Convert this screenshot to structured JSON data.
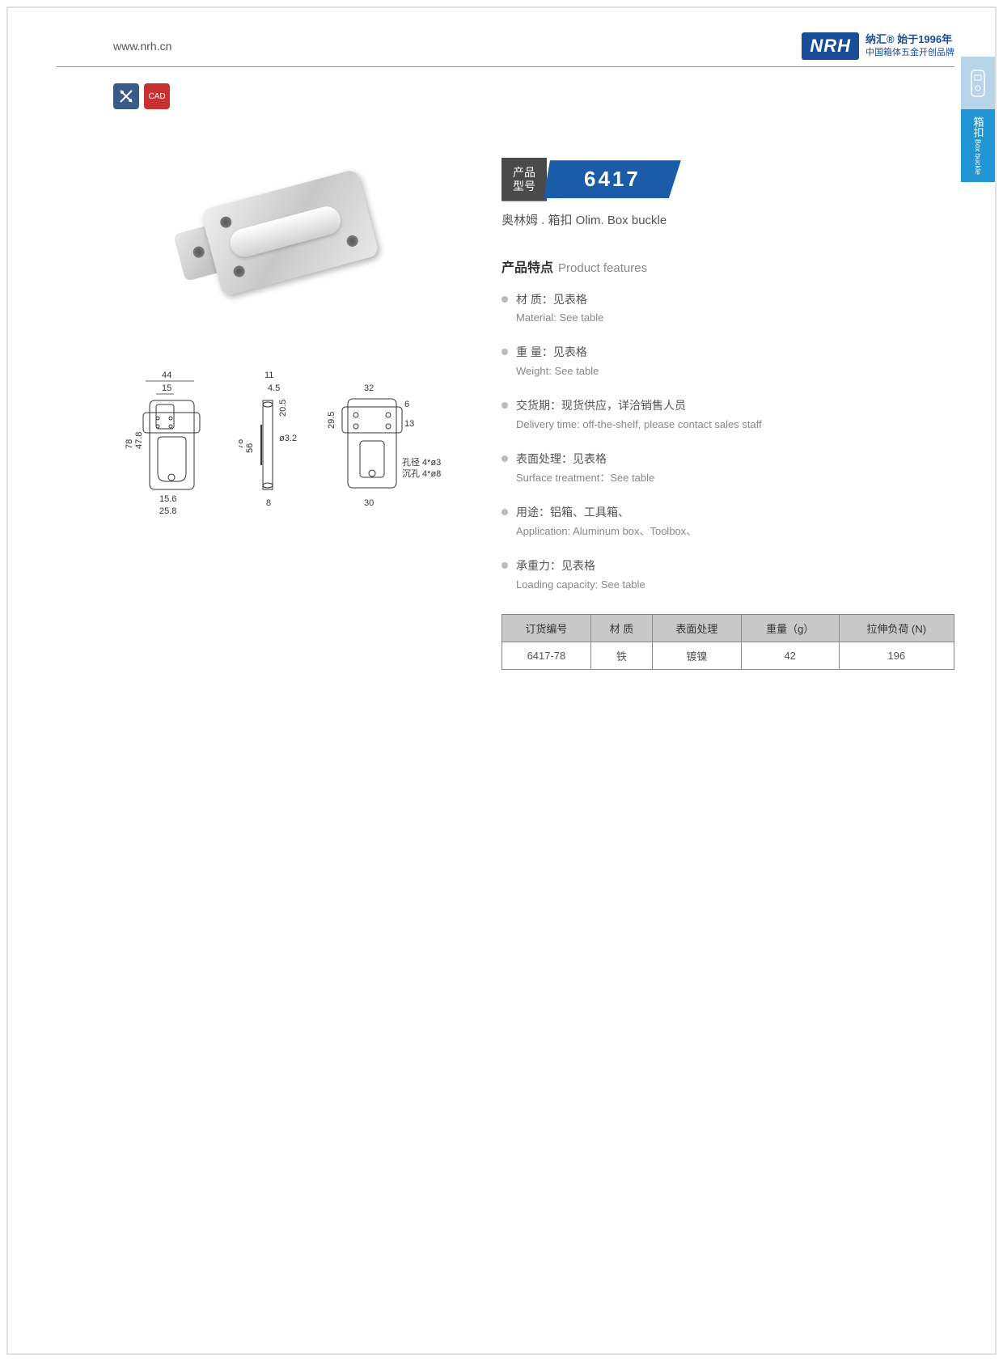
{
  "header": {
    "url": "www.nrh.cn",
    "brand": "NRH",
    "tagline1": "纳汇® 始于1996年",
    "tagline2": "中国箱体五金开创品牌"
  },
  "sideTab": {
    "cn": "箱扣",
    "en": "Box buckle"
  },
  "icons": {
    "i1": "✕",
    "i2": "CAD"
  },
  "model": {
    "label": "产品\n型号",
    "number": "6417",
    "subtitle": "奥林姆 . 箱扣  Olim. Box buckle"
  },
  "features": {
    "header_cn": "产品特点",
    "header_en": "Product features",
    "items": [
      {
        "cn": "材  质：见表格",
        "en": "Material: See table"
      },
      {
        "cn": "重  量：见表格",
        "en": "Weight: See table"
      },
      {
        "cn": "交货期：现货供应，详洽销售人员",
        "en": "Delivery time: off-the-shelf, please contact sales staff"
      },
      {
        "cn": "表面处理：见表格",
        "en": "Surface treatment：See table"
      },
      {
        "cn": "用途：铝箱、工具箱、",
        "en": "Application: Aluminum box、Toolbox、"
      },
      {
        "cn": "承重力：见表格",
        "en": "Loading capacity: See table"
      }
    ]
  },
  "table": {
    "headers": [
      "订货编号",
      "材  质",
      "表面处理",
      "重量（g）",
      "拉伸负荷 (N)"
    ],
    "row": [
      "6417-78",
      "铁",
      "镀镍",
      "42",
      "196"
    ]
  },
  "dims": {
    "v1": {
      "w": "44",
      "w2": "15",
      "h": "78",
      "h2": "47.8",
      "b1": "15.6",
      "b2": "25.8"
    },
    "v2": {
      "w": "11",
      "w2": "4.5",
      "h": "78",
      "h2": "56",
      "h3": "20.5",
      "d": "ø3.2",
      "b": "8"
    },
    "v3": {
      "w": "32",
      "h": "29.5",
      "h2": "6",
      "h3": "13",
      "n1": "孔径 4*ø3.8",
      "n2": "沉孔 4*ø8",
      "b": "30"
    }
  }
}
